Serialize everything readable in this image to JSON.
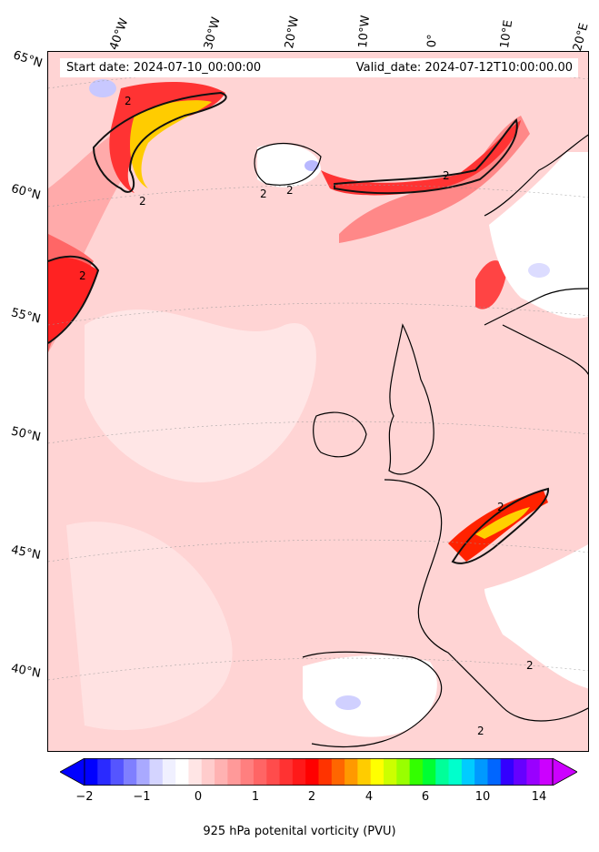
{
  "info": {
    "start_date": "Start date: 2024-07-10_00:00:00",
    "valid_date": "Valid_date: 2024-07-12T10:00:00.00"
  },
  "longitude_labels": [
    "40°W",
    "30°W",
    "20°W",
    "10°W",
    "0°",
    "10°E",
    "20°E"
  ],
  "latitude_labels": [
    "65°N",
    "60°N",
    "55°N",
    "50°N",
    "45°N",
    "40°N"
  ],
  "contour_label": "2",
  "colorbar": {
    "title": "925 hPa potenital vorticity (PVU)",
    "ticks": [
      "−2",
      "−1",
      "0",
      "1",
      "2",
      "4",
      "6",
      "10",
      "14"
    ],
    "colors": [
      "#0000ff",
      "#2a2aff",
      "#5555ff",
      "#7f7fff",
      "#a9a9ff",
      "#d4d4ff",
      "#f0f0ff",
      "#ffffff",
      "#ffe5e5",
      "#ffcccc",
      "#ffb2b2",
      "#ff9999",
      "#ff7f7f",
      "#ff6565",
      "#ff4c4c",
      "#ff3232",
      "#ff1919",
      "#ff0000",
      "#ff3300",
      "#ff6600",
      "#ff9900",
      "#ffcc00",
      "#ffff00",
      "#ccff00",
      "#99ff00",
      "#33ff00",
      "#00ff33",
      "#00ff99",
      "#00ffcc",
      "#00ccff",
      "#0099ff",
      "#0066ff",
      "#3300ff",
      "#6600ff",
      "#9900ff",
      "#cc00ff"
    ],
    "under_color": "#0000ff",
    "over_color": "#cc00ff"
  }
}
